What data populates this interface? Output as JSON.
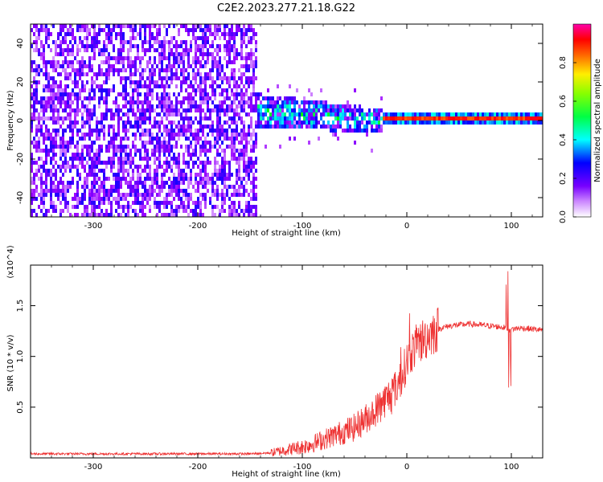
{
  "title": "C2E2.2023.277.21.18.G22",
  "colors": {
    "snr_line": "#ee3333",
    "spectrogram_low": "#d9b8ff",
    "spectrogram_mid": "#7b22ee",
    "accent_band": "#ff2a2a"
  },
  "chart_data": [
    {
      "type": "heatmap",
      "xlabel": "Height of straight line (km)",
      "ylabel": "Frequency (Hz)",
      "xlim": [
        -360,
        130
      ],
      "ylim": [
        -50,
        50
      ],
      "xticks": [
        -300,
        -200,
        -100,
        0,
        100
      ],
      "yticks": [
        -40,
        -20,
        0,
        20,
        40
      ],
      "colorbar": {
        "label": "Normalized spectral amplitude",
        "range": [
          0.0,
          1.0
        ],
        "ticks": [
          0.0,
          0.2,
          0.4,
          0.6,
          0.8
        ],
        "colormap": [
          "#ffffff",
          "#9900ff",
          "#0000ff",
          "#00ffff",
          "#00ff00",
          "#ffff00",
          "#ff8800",
          "#ff0000",
          "#ff00aa"
        ]
      },
      "regions": [
        {
          "x_range": [
            -360,
            -145
          ],
          "freq_range": [
            -50,
            50
          ],
          "amplitude": 0.05,
          "description": "broadband noise"
        },
        {
          "x_range": [
            -145,
            -25
          ],
          "freq_range": [
            -12,
            15
          ],
          "amplitude": 0.2
        },
        {
          "x_range": [
            -25,
            130
          ],
          "freq_range": [
            1,
            3
          ],
          "amplitude": 0.9
        }
      ]
    },
    {
      "type": "line",
      "xlabel": "Height of straight line (km)",
      "ylabel": "SNR (10 * v/v)",
      "y_multiplier": "(x10^4)",
      "xlim": [
        -360,
        130
      ],
      "ylim": [
        0,
        1.9
      ],
      "xticks": [
        -300,
        -200,
        -100,
        0,
        100
      ],
      "yticks": [
        0.5,
        1.0,
        1.5
      ],
      "series": [
        {
          "x": [
            -360,
            -330,
            -300,
            -270,
            -240,
            -210,
            -180,
            -150,
            -130,
            -120,
            -110,
            -100,
            -90,
            -80,
            -70,
            -60,
            -50,
            -40,
            -30,
            -20,
            -15,
            -10,
            -5,
            0,
            5,
            10,
            15,
            20,
            25,
            30,
            40,
            50,
            60,
            70,
            80,
            90,
            95,
            98,
            100,
            110,
            120,
            130
          ],
          "y": [
            0.04,
            0.04,
            0.04,
            0.04,
            0.04,
            0.04,
            0.04,
            0.04,
            0.05,
            0.07,
            0.09,
            0.11,
            0.14,
            0.18,
            0.22,
            0.26,
            0.3,
            0.38,
            0.47,
            0.58,
            0.63,
            0.7,
            0.8,
            0.95,
            1.05,
            1.12,
            1.16,
            1.2,
            1.24,
            1.27,
            1.3,
            1.31,
            1.32,
            1.31,
            1.3,
            1.29,
            1.28,
            1.26,
            1.27,
            1.28,
            1.27,
            1.26
          ]
        }
      ]
    }
  ]
}
